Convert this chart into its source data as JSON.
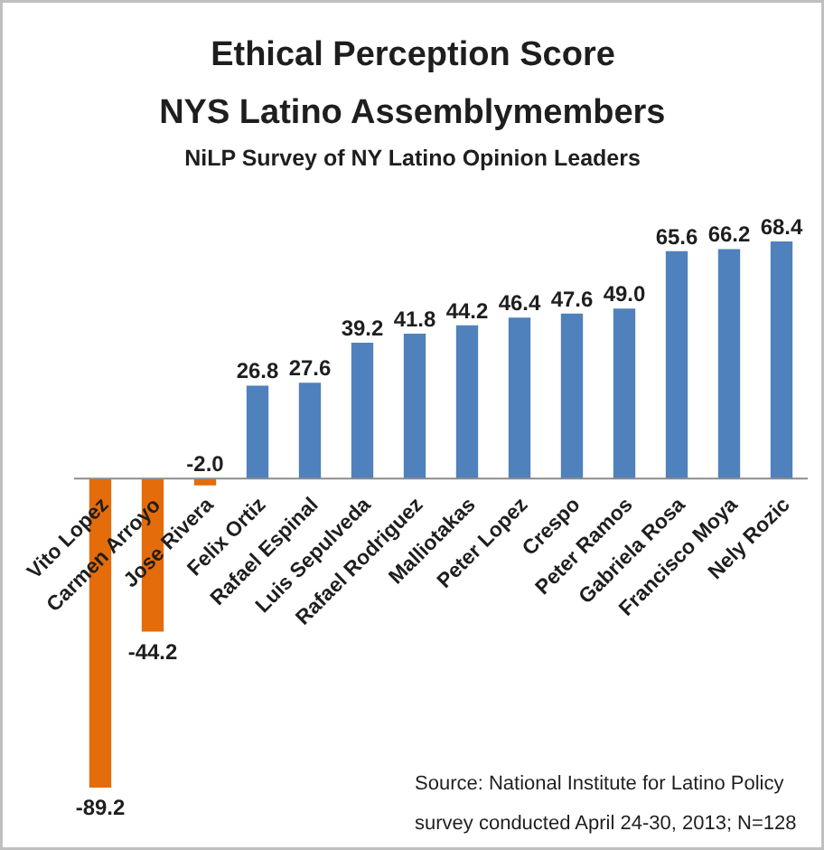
{
  "chart_data": {
    "type": "bar",
    "title": "Ethical Perception Score\nNYS Latino Assemblymembers",
    "subtitle": "NiLP Survey of NY Latino Opinion Leaders",
    "categories": [
      "Vito Lopez",
      "Carmen Arroyo",
      "Jose Rivera",
      "Felix Ortiz",
      "Rafael Espinal",
      "Luis Sepulveda",
      "Rafael Rodriguez",
      "Malliotakas",
      "Peter Lopez",
      "Crespo",
      "Peter Ramos",
      "Gabriela Rosa",
      "Francisco Moya",
      "Nely Rozic"
    ],
    "values": [
      -89.2,
      -44.2,
      -2.0,
      26.8,
      27.6,
      39.2,
      41.8,
      44.2,
      46.4,
      47.6,
      49.0,
      65.6,
      66.2,
      68.4
    ],
    "value_labels": [
      "-89.2",
      "-44.2",
      "-2.0",
      "26.8",
      "27.6",
      "39.2",
      "41.8",
      "44.2",
      "46.4",
      "47.6",
      "49.0",
      "65.6",
      "66.2",
      "68.4"
    ],
    "colors": [
      "#e46c0a",
      "#e46c0a",
      "#e46c0a",
      "#4f81bd",
      "#4f81bd",
      "#4f81bd",
      "#4f81bd",
      "#4f81bd",
      "#4f81bd",
      "#4f81bd",
      "#4f81bd",
      "#4f81bd",
      "#4f81bd",
      "#4f81bd"
    ],
    "tick_labels": "x",
    "annotations": [
      "Source: National Institute for Latino Policy",
      "survey conducted April 24-30, 2013; N=128"
    ]
  }
}
